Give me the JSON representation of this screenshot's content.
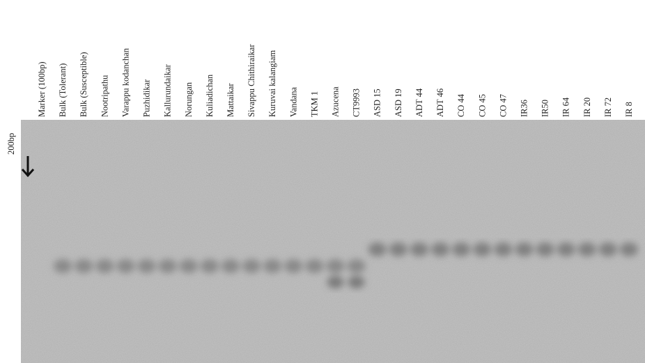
{
  "figure": {
    "marker_label": "200bp",
    "lanes": [
      "Marker (100bp)",
      "Bulk (Tolerant)",
      "Bulk (Susceptible)",
      "Nootripathu",
      "Varappu kodanchan",
      "Puzhidikar",
      "Kallurundaikar",
      "Norungan",
      "Kuliadichan",
      "Mattaikar",
      "Sivappu Chithiraikar",
      "Kuruvai kalangiam",
      "Vandana",
      "TKM 1",
      "Azucena",
      "CT9993",
      "ASD 15",
      "ASD 19",
      "ADT 44",
      "ADT 46",
      "CO 44",
      "CO 45",
      "CO 47",
      "IR36",
      "IR50",
      "IR 64",
      "IR 20",
      "IR 72",
      "IR 8"
    ]
  }
}
